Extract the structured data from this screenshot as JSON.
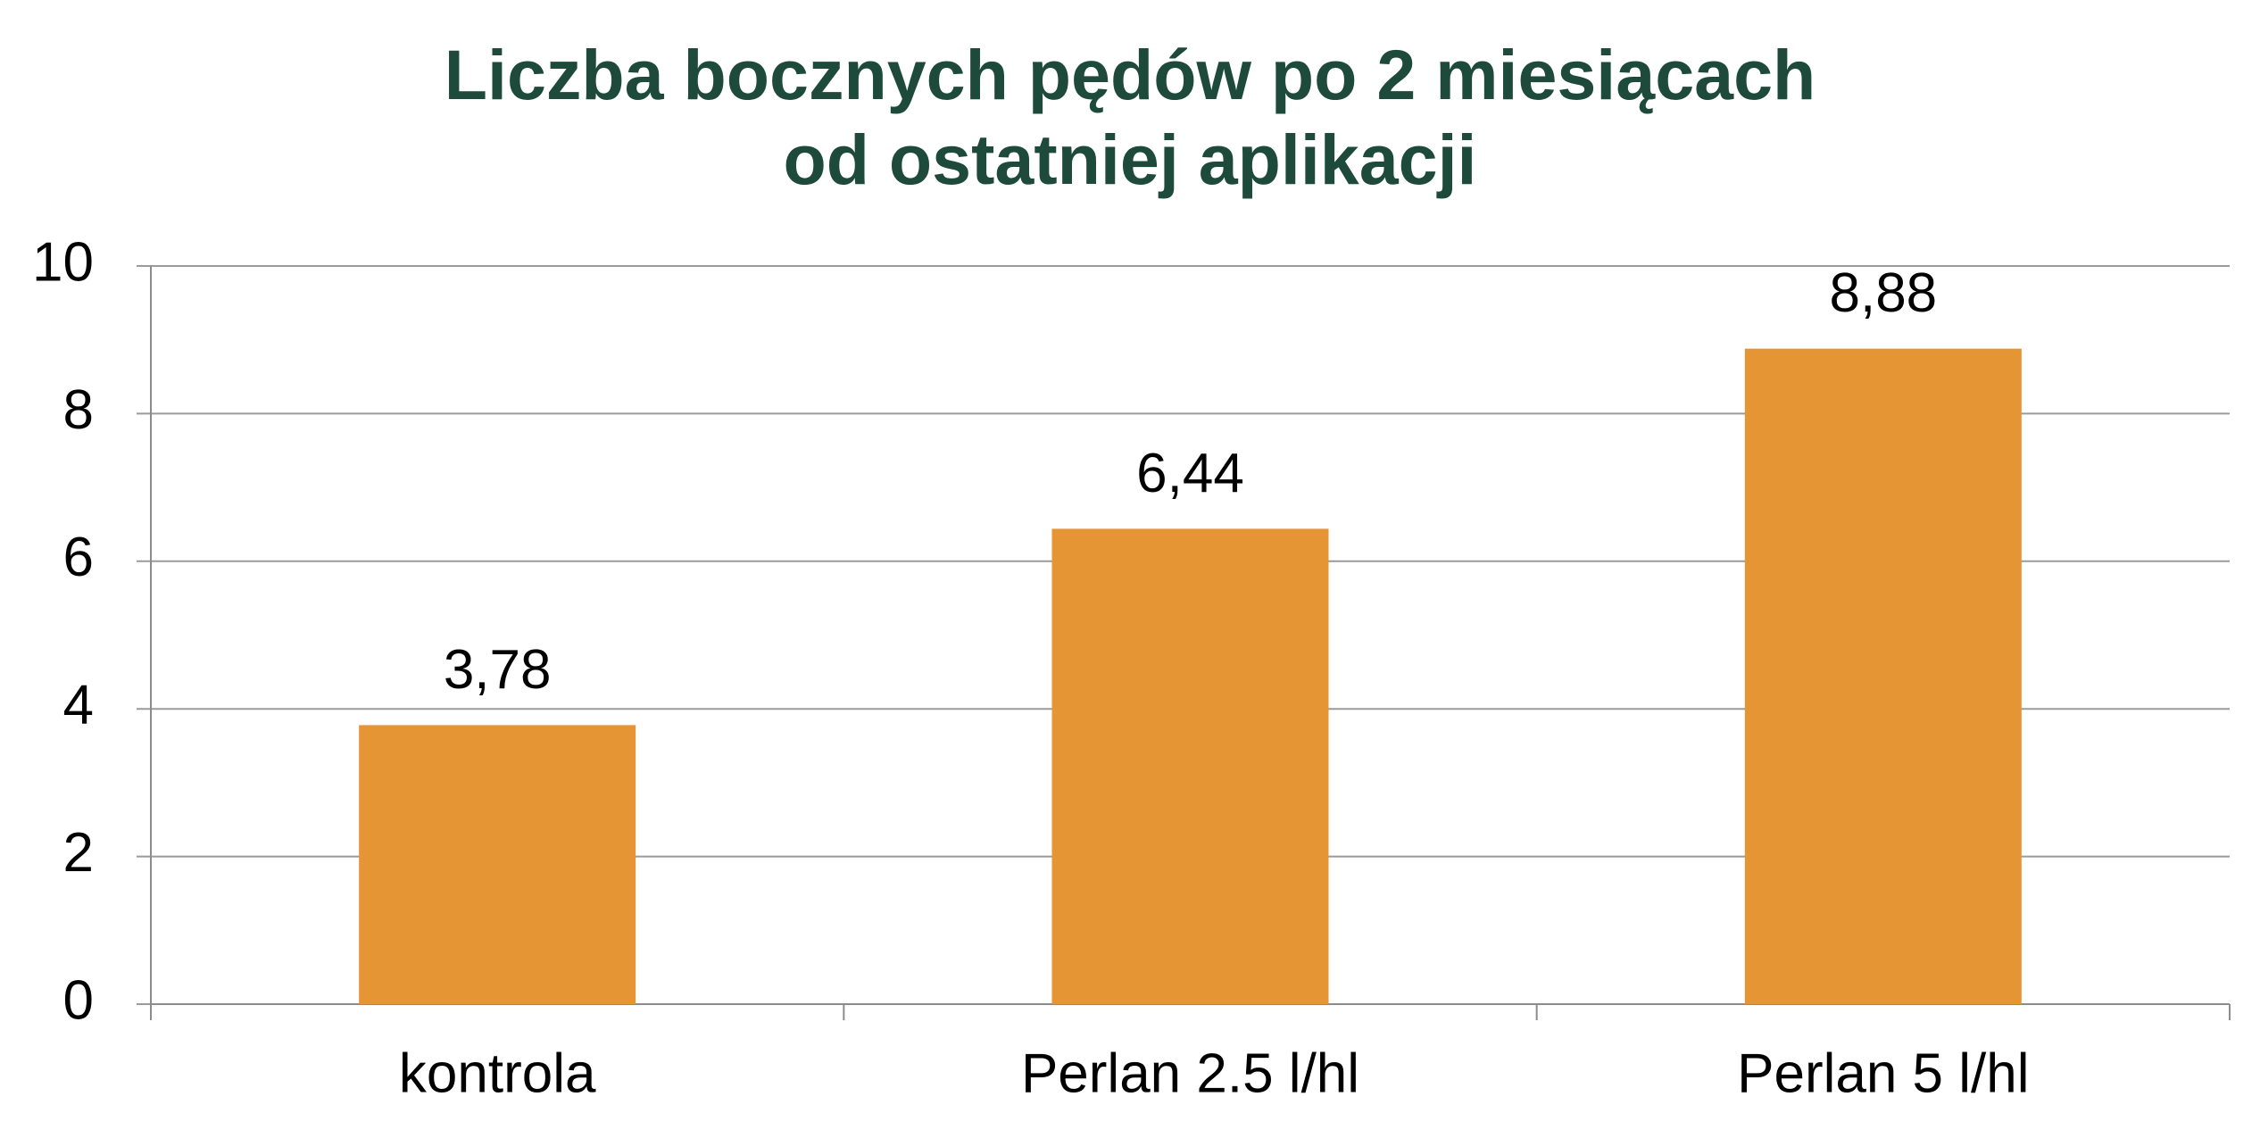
{
  "chart_data": {
    "type": "bar",
    "title": [
      "Liczba bocznych pędów po 2 miesiącach",
      "od ostatniej aplikacji"
    ],
    "categories": [
      "kontrola",
      "Perlan 2.5 l/hl",
      "Perlan 5 l/hl"
    ],
    "values": [
      3.78,
      6.44,
      8.88
    ],
    "value_labels": [
      "3,78",
      "6,44",
      "8,88"
    ],
    "color": "#e69535",
    "ylim": [
      0,
      10
    ],
    "yticks": [
      0,
      2,
      4,
      6,
      8,
      10
    ],
    "grid": true
  }
}
